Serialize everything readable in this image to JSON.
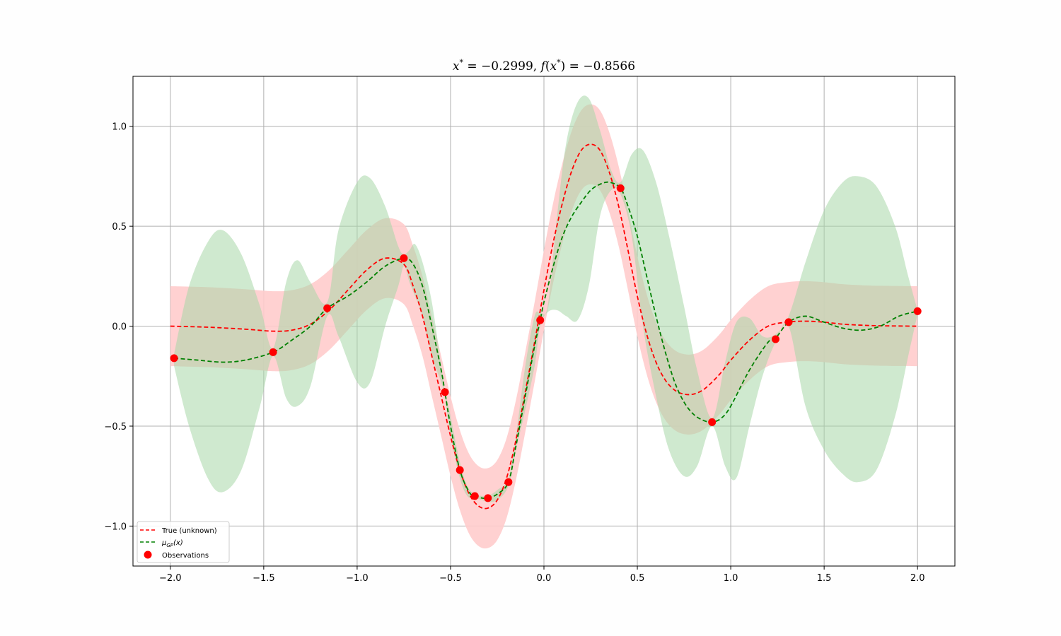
{
  "chart_data": {
    "type": "line",
    "title": "x* = −0.2999, f(x*) = −0.8566",
    "title_parts": {
      "x_sym": "x",
      "x_val": " = −0.2999, ",
      "f_sym": "f",
      "f_open": "(",
      "f_x": "x",
      "f_close": ") = −0.8566"
    },
    "xlabel": "",
    "ylabel": "",
    "xlim": [
      -2.2,
      2.2
    ],
    "ylim": [
      -1.2,
      1.25
    ],
    "grid": true,
    "legend_placement": "lower-left",
    "xticks": [
      -2.0,
      -1.5,
      -1.0,
      -0.5,
      0.0,
      0.5,
      1.0,
      1.5,
      2.0
    ],
    "xtick_labels": [
      "−2.0",
      "−1.5",
      "−1.0",
      "−0.5",
      "0.0",
      "0.5",
      "1.0",
      "1.5",
      "2.0"
    ],
    "yticks": [
      -1.0,
      -0.5,
      0.0,
      0.5,
      1.0
    ],
    "ytick_labels": [
      "−1.0",
      "−0.5",
      "0.0",
      "0.5",
      "1.0"
    ],
    "colors": {
      "true_line": "#ff0000",
      "gp_line": "#008000",
      "true_band": "#ffcccc",
      "gp_band": "#a8d7a8",
      "points": "#ff0000",
      "grid": "#b0b0b0"
    },
    "series": [
      {
        "name": "True (unknown)",
        "style": "dashed",
        "x": [
          -2.0,
          -1.8,
          -1.6,
          -1.45,
          -1.35,
          -1.25,
          -1.15,
          -1.05,
          -0.95,
          -0.85,
          -0.75,
          -0.7,
          -0.65,
          -0.6,
          -0.55,
          -0.5,
          -0.45,
          -0.4,
          -0.35,
          -0.3,
          -0.25,
          -0.2,
          -0.15,
          -0.1,
          -0.05,
          0.0,
          0.05,
          0.1,
          0.15,
          0.2,
          0.25,
          0.3,
          0.35,
          0.4,
          0.45,
          0.5,
          0.55,
          0.6,
          0.65,
          0.7,
          0.75,
          0.8,
          0.85,
          0.9,
          0.95,
          1.0,
          1.1,
          1.2,
          1.3,
          1.4,
          1.5,
          1.6,
          1.7,
          1.8,
          2.0
        ],
        "y": [
          0.0,
          -0.005,
          -0.015,
          -0.025,
          -0.02,
          0.01,
          0.08,
          0.18,
          0.28,
          0.34,
          0.31,
          0.2,
          0.05,
          -0.15,
          -0.35,
          -0.55,
          -0.72,
          -0.84,
          -0.9,
          -0.91,
          -0.87,
          -0.76,
          -0.57,
          -0.33,
          -0.08,
          0.18,
          0.42,
          0.62,
          0.78,
          0.88,
          0.91,
          0.88,
          0.77,
          0.6,
          0.38,
          0.15,
          -0.04,
          -0.18,
          -0.27,
          -0.32,
          -0.34,
          -0.34,
          -0.32,
          -0.28,
          -0.23,
          -0.17,
          -0.07,
          0.0,
          0.02,
          0.025,
          0.02,
          0.01,
          0.005,
          0.002,
          0.0
        ]
      },
      {
        "name": "μGP(x)",
        "name_parts": {
          "mu": "μ",
          "sub": "GP",
          "arg": "(x)"
        },
        "style": "dashed",
        "x": [
          -1.98,
          -1.85,
          -1.72,
          -1.6,
          -1.45,
          -1.35,
          -1.25,
          -1.16,
          -1.05,
          -0.95,
          -0.85,
          -0.75,
          -0.7,
          -0.65,
          -0.6,
          -0.55,
          -0.53,
          -0.5,
          -0.45,
          -0.4,
          -0.37,
          -0.33,
          -0.3,
          -0.25,
          -0.19,
          -0.15,
          -0.1,
          -0.05,
          -0.02,
          0.0,
          0.05,
          0.1,
          0.15,
          0.2,
          0.25,
          0.3,
          0.35,
          0.41,
          0.45,
          0.5,
          0.55,
          0.6,
          0.65,
          0.7,
          0.75,
          0.8,
          0.85,
          0.9,
          0.95,
          1.0,
          1.1,
          1.2,
          1.24,
          1.31,
          1.4,
          1.5,
          1.6,
          1.7,
          1.8,
          1.9,
          2.0
        ],
        "y": [
          -0.16,
          -0.17,
          -0.18,
          -0.17,
          -0.13,
          -0.07,
          0.0,
          0.09,
          0.15,
          0.22,
          0.3,
          0.34,
          0.31,
          0.2,
          0.0,
          -0.22,
          -0.33,
          -0.5,
          -0.72,
          -0.83,
          -0.85,
          -0.86,
          -0.86,
          -0.84,
          -0.78,
          -0.6,
          -0.35,
          -0.1,
          0.03,
          0.12,
          0.3,
          0.45,
          0.55,
          0.62,
          0.68,
          0.71,
          0.72,
          0.69,
          0.6,
          0.45,
          0.25,
          0.05,
          -0.13,
          -0.28,
          -0.38,
          -0.44,
          -0.47,
          -0.48,
          -0.46,
          -0.4,
          -0.22,
          -0.08,
          -0.06,
          0.02,
          0.05,
          0.02,
          -0.01,
          -0.02,
          0.0,
          0.05,
          0.075
        ]
      },
      {
        "name": "Observations",
        "style": "markers",
        "x": [
          -1.98,
          -1.45,
          -1.16,
          -0.75,
          -0.53,
          -0.45,
          -0.37,
          -0.3,
          -0.19,
          -0.02,
          0.41,
          0.9,
          1.24,
          1.31,
          2.0
        ],
        "y": [
          -0.16,
          -0.13,
          0.09,
          0.34,
          -0.33,
          -0.72,
          -0.85,
          -0.86,
          -0.78,
          0.03,
          0.69,
          -0.48,
          -0.065,
          0.02,
          0.075
        ]
      }
    ],
    "true_band": {
      "x": [
        -2.0,
        -1.8,
        -1.6,
        -1.45,
        -1.35,
        -1.25,
        -1.15,
        -1.05,
        -0.95,
        -0.85,
        -0.75,
        -0.7,
        -0.65,
        -0.6,
        -0.55,
        -0.5,
        -0.45,
        -0.4,
        -0.35,
        -0.3,
        -0.25,
        -0.2,
        -0.15,
        -0.1,
        -0.05,
        0.0,
        0.05,
        0.1,
        0.15,
        0.2,
        0.25,
        0.3,
        0.35,
        0.4,
        0.45,
        0.5,
        0.55,
        0.6,
        0.65,
        0.7,
        0.75,
        0.8,
        0.85,
        0.9,
        0.95,
        1.0,
        1.1,
        1.2,
        1.3,
        1.4,
        1.5,
        1.6,
        1.7,
        1.8,
        2.0
      ],
      "half_width": 0.2
    },
    "gp_band": {
      "x": [
        -1.98,
        -1.9,
        -1.8,
        -1.72,
        -1.62,
        -1.52,
        -1.45,
        -1.38,
        -1.32,
        -1.25,
        -1.16,
        -1.1,
        -1.0,
        -0.93,
        -0.85,
        -0.78,
        -0.75,
        -0.72,
        -0.69,
        -0.65,
        -0.6,
        -0.55,
        -0.53,
        -0.5,
        -0.45,
        -0.41,
        -0.37,
        -0.33,
        -0.3,
        -0.25,
        -0.19,
        -0.15,
        -0.1,
        -0.05,
        -0.02,
        0.02,
        0.07,
        0.12,
        0.18,
        0.24,
        0.3,
        0.36,
        0.41,
        0.47,
        0.53,
        0.6,
        0.67,
        0.75,
        0.82,
        0.9,
        0.97,
        1.03,
        1.1,
        1.17,
        1.24,
        1.31,
        1.4,
        1.5,
        1.6,
        1.68,
        1.78,
        1.88,
        1.95,
        2.0
      ],
      "upper": [
        -0.14,
        0.2,
        0.42,
        0.48,
        0.36,
        0.1,
        -0.11,
        0.22,
        0.33,
        0.22,
        0.12,
        0.48,
        0.72,
        0.74,
        0.6,
        0.4,
        0.36,
        0.38,
        0.41,
        0.32,
        0.12,
        -0.2,
        -0.32,
        -0.45,
        -0.68,
        -0.8,
        -0.84,
        -0.85,
        -0.85,
        -0.82,
        -0.76,
        -0.55,
        -0.2,
        0.05,
        0.07,
        0.1,
        0.55,
        0.92,
        1.12,
        1.14,
        0.98,
        0.78,
        0.72,
        0.86,
        0.88,
        0.72,
        0.45,
        0.1,
        -0.22,
        -0.46,
        -0.18,
        0.02,
        0.04,
        -0.05,
        -0.04,
        0.05,
        0.32,
        0.58,
        0.72,
        0.75,
        0.7,
        0.5,
        0.25,
        0.08
      ],
      "lower": [
        -0.2,
        -0.5,
        -0.76,
        -0.83,
        -0.72,
        -0.4,
        -0.15,
        -0.36,
        -0.4,
        -0.3,
        0.05,
        -0.05,
        -0.28,
        -0.28,
        0.0,
        0.2,
        0.3,
        0.22,
        0.15,
        0.05,
        -0.15,
        -0.28,
        -0.35,
        -0.55,
        -0.76,
        -0.85,
        -0.86,
        -0.87,
        -0.88,
        -0.87,
        -0.8,
        -0.62,
        -0.42,
        -0.2,
        0.0,
        0.07,
        0.08,
        0.05,
        0.03,
        0.2,
        0.55,
        0.68,
        0.66,
        0.45,
        0.0,
        -0.35,
        -0.62,
        -0.75,
        -0.7,
        -0.5,
        -0.7,
        -0.76,
        -0.5,
        -0.25,
        -0.08,
        0.0,
        -0.4,
        -0.62,
        -0.74,
        -0.78,
        -0.72,
        -0.45,
        -0.15,
        0.06
      ]
    }
  }
}
